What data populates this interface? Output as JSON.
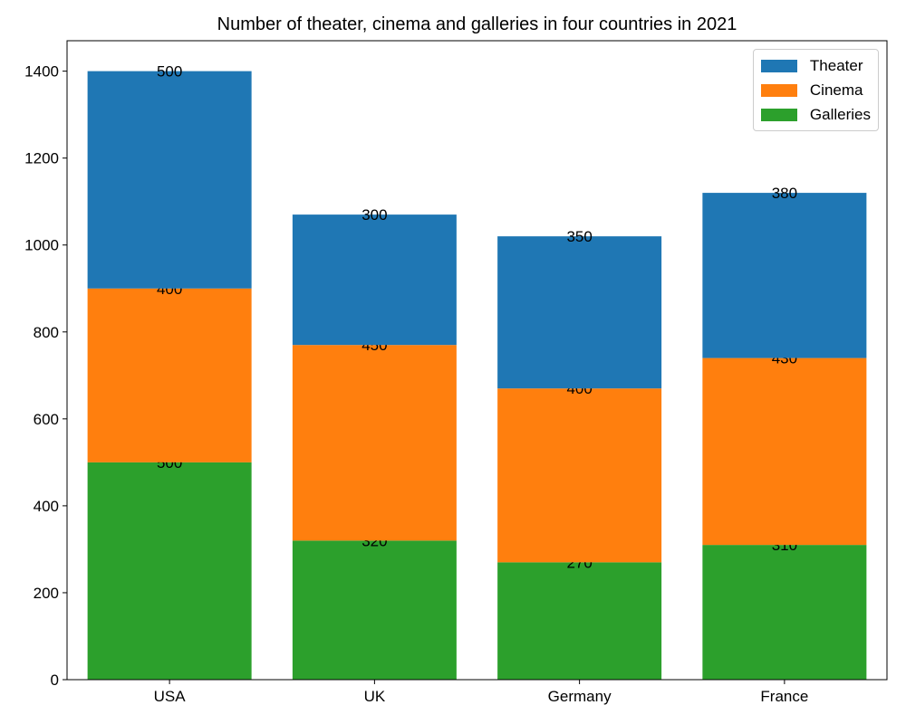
{
  "chart_data": {
    "type": "bar",
    "stacked": true,
    "title": "Number of theater, cinema and galleries in four countries in 2021",
    "xlabel": "",
    "ylabel": "",
    "categories": [
      "USA",
      "UK",
      "Germany",
      "France"
    ],
    "series": [
      {
        "name": "Galleries",
        "color": "#2ca02c",
        "values": [
          500,
          320,
          270,
          310
        ]
      },
      {
        "name": "Cinema",
        "color": "#ff7f0e",
        "values": [
          400,
          450,
          400,
          430
        ]
      },
      {
        "name": "Theater",
        "color": "#1f77b4",
        "values": [
          500,
          300,
          350,
          380
        ]
      }
    ],
    "legend_order": [
      "Theater",
      "Cinema",
      "Galleries"
    ],
    "ylim": [
      0,
      1470
    ],
    "yticks": [
      0,
      200,
      400,
      600,
      800,
      1000,
      1200,
      1400
    ],
    "legend_position": "top-right",
    "grid": false
  }
}
